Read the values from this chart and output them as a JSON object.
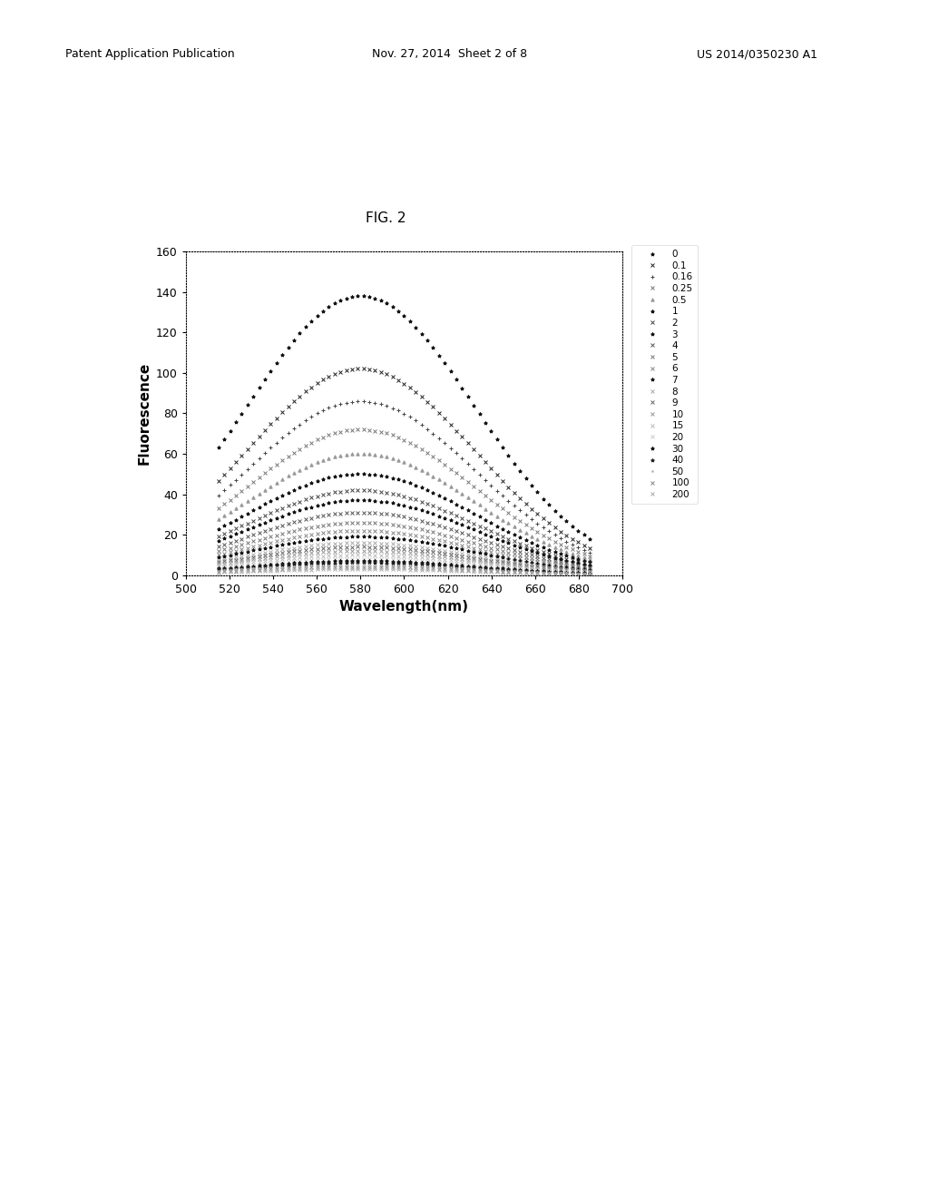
{
  "title": "FIG. 2",
  "xlabel": "Wavelength(nm)",
  "ylabel": "Fluorescence",
  "xlim": [
    500,
    700
  ],
  "ylim": [
    0,
    160
  ],
  "xticks": [
    500,
    520,
    540,
    560,
    580,
    600,
    620,
    640,
    660,
    680,
    700
  ],
  "yticks": [
    0,
    20,
    40,
    60,
    80,
    100,
    120,
    140,
    160
  ],
  "peak_wavelength": 580,
  "series": [
    {
      "label": "0",
      "peak": 138,
      "sigma": 52,
      "color": "#111111",
      "marker": "*",
      "ms": 2.8
    },
    {
      "label": "0.1",
      "peak": 102,
      "sigma": 52,
      "color": "#222222",
      "marker": "x",
      "ms": 2.8
    },
    {
      "label": "0.16",
      "peak": 86,
      "sigma": 52,
      "color": "#444444",
      "marker": "+",
      "ms": 2.8
    },
    {
      "label": "0.25",
      "peak": 72,
      "sigma": 52,
      "color": "#777777",
      "marker": "x",
      "ms": 2.8
    },
    {
      "label": "0.5",
      "peak": 60,
      "sigma": 52,
      "color": "#999999",
      "marker": "^",
      "ms": 2.5
    },
    {
      "label": "1",
      "peak": 50,
      "sigma": 52,
      "color": "#111111",
      "marker": "*",
      "ms": 2.8
    },
    {
      "label": "2",
      "peak": 42,
      "sigma": 52,
      "color": "#444444",
      "marker": "x",
      "ms": 2.5
    },
    {
      "label": "3",
      "peak": 37,
      "sigma": 52,
      "color": "#111111",
      "marker": "*",
      "ms": 2.8
    },
    {
      "label": "4",
      "peak": 31,
      "sigma": 52,
      "color": "#555555",
      "marker": "x",
      "ms": 2.5
    },
    {
      "label": "5",
      "peak": 26,
      "sigma": 52,
      "color": "#777777",
      "marker": "x",
      "ms": 2.5
    },
    {
      "label": "6",
      "peak": 22,
      "sigma": 52,
      "color": "#888888",
      "marker": "x",
      "ms": 2.5
    },
    {
      "label": "7",
      "peak": 19,
      "sigma": 52,
      "color": "#111111",
      "marker": "*",
      "ms": 2.8
    },
    {
      "label": "8",
      "peak": 16,
      "sigma": 52,
      "color": "#aaaaaa",
      "marker": "x",
      "ms": 2.5
    },
    {
      "label": "9",
      "peak": 14,
      "sigma": 52,
      "color": "#666666",
      "marker": "x",
      "ms": 2.5
    },
    {
      "label": "10",
      "peak": 12,
      "sigma": 52,
      "color": "#999999",
      "marker": "x",
      "ms": 2.5
    },
    {
      "label": "15",
      "peak": 10,
      "sigma": 52,
      "color": "#bbbbbb",
      "marker": "x",
      "ms": 2.5
    },
    {
      "label": "20",
      "peak": 8,
      "sigma": 52,
      "color": "#cccccc",
      "marker": "x",
      "ms": 2.5
    },
    {
      "label": "30",
      "peak": 7,
      "sigma": 52,
      "color": "#111111",
      "marker": "*",
      "ms": 2.8
    },
    {
      "label": "40",
      "peak": 6,
      "sigma": 52,
      "color": "#222222",
      "marker": "*",
      "ms": 2.8
    },
    {
      "label": "50",
      "peak": 5,
      "sigma": 52,
      "color": "#bbbbbb",
      "marker": ".",
      "ms": 2.5
    },
    {
      "label": "100",
      "peak": 4,
      "sigma": 52,
      "color": "#888888",
      "marker": "x",
      "ms": 2.5
    },
    {
      "label": "200",
      "peak": 3,
      "sigma": 52,
      "color": "#aaaaaa",
      "marker": "x",
      "ms": 2.5
    }
  ],
  "background_color": "#ffffff",
  "title_fontsize": 11,
  "axis_label_fontsize": 11,
  "tick_fontsize": 9,
  "legend_fontsize": 7.5,
  "header_left": "Patent Application Publication",
  "header_mid": "Nov. 27, 2014  Sheet 2 of 8",
  "header_right": "US 2014/0350230 A1"
}
